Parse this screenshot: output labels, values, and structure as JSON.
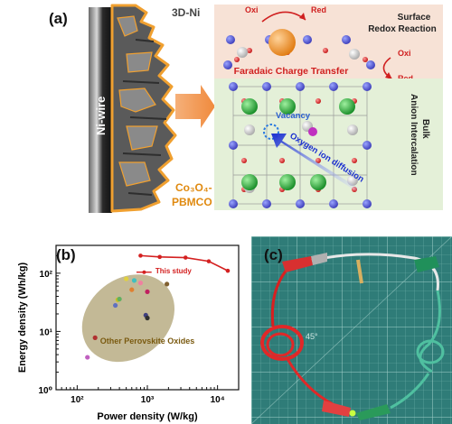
{
  "panel_a": {
    "label": "(a)",
    "wire_label": "Ni-wire",
    "scaffold_label": "3D-Ni",
    "coating_label_line1": "Co₃O₄-",
    "coating_label_line2": "PBMCO",
    "surface_title_line1": "Surface",
    "surface_title_line2": "Redox Reaction",
    "oxi": "Oxi",
    "red": "Red",
    "faradaic": "Faradaic Charge Transfer",
    "bulk_title_line1": "Bulk",
    "bulk_title_line2": "Anion Intercalation",
    "vacancy": "Vacancy",
    "diffusion": "Oxygen ion diffusion",
    "colors": {
      "coating": "#f0a030",
      "arrow": "#f08a3c",
      "surface_bg": "#f7e2d6",
      "bulk_bg": "#e4f0d8"
    }
  },
  "panel_b": {
    "label": "(b)",
    "this_study_label": "This study",
    "others_label": "Other Perovskite Oxides",
    "colors": {
      "this_study": "#d42020",
      "ellipse": "#b9ad84",
      "others_label": "#7a5a10"
    }
  },
  "panel_c": {
    "label": "(c)",
    "mat_mark": "45°"
  },
  "chart_data": {
    "type": "scatter",
    "title": "",
    "xlabel": "Power density (W/kg)",
    "ylabel": "Energy density (Wh/kg)",
    "xscale": "log",
    "yscale": "log",
    "xlim": [
      50,
      20000
    ],
    "ylim": [
      1,
      300
    ],
    "x_ticks": [
      {
        "v": 100,
        "l": "10²"
      },
      {
        "v": 1000,
        "l": "10³"
      },
      {
        "v": 10000,
        "l": "10⁴"
      }
    ],
    "y_ticks": [
      {
        "v": 1,
        "l": "10⁰"
      },
      {
        "v": 10,
        "l": "10¹"
      },
      {
        "v": 100,
        "l": "10²"
      }
    ],
    "series": [
      {
        "name": "This study",
        "style": "line-marker",
        "color": "#d42020",
        "points": [
          [
            800,
            200
          ],
          [
            1500,
            190
          ],
          [
            3500,
            185
          ],
          [
            7500,
            160
          ],
          [
            14000,
            110
          ]
        ]
      },
      {
        "name": "Other Perovskite Oxides",
        "style": "scatter",
        "points": [
          {
            "x": 140,
            "y": 3.6,
            "color": "#c060c0"
          },
          {
            "x": 180,
            "y": 7.8,
            "color": "#b03030"
          },
          {
            "x": 350,
            "y": 28,
            "color": "#6070c0"
          },
          {
            "x": 380,
            "y": 35,
            "color": "#c8c020"
          },
          {
            "x": 400,
            "y": 36,
            "color": "#60b060"
          },
          {
            "x": 500,
            "y": 80,
            "color": "#e0d040"
          },
          {
            "x": 650,
            "y": 75,
            "color": "#40c0c0"
          },
          {
            "x": 800,
            "y": 68,
            "color": "#f080a0"
          },
          {
            "x": 1000,
            "y": 48,
            "color": "#c02060"
          },
          {
            "x": 600,
            "y": 52,
            "color": "#e08030"
          },
          {
            "x": 950,
            "y": 19,
            "color": "#404080"
          },
          {
            "x": 1000,
            "y": 17,
            "color": "#303030"
          },
          {
            "x": 1900,
            "y": 65,
            "color": "#806030"
          }
        ]
      }
    ]
  }
}
